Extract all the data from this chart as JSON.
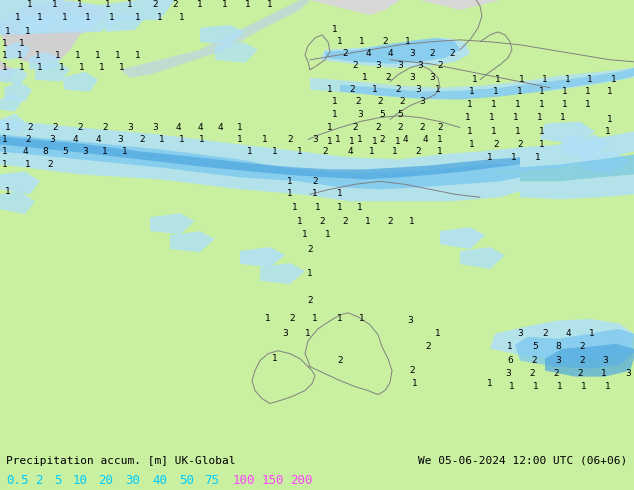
{
  "title_left": "Precipitation accum. [m] UK-Global",
  "title_right": "We 05-06-2024 12:00 UTC (06+06)",
  "bg_color": "#c8f0a0",
  "land_color": "#c8f0a0",
  "sea_color": "#d4ecd4",
  "uk_color": "#d8d8d8",
  "fig_width": 6.34,
  "fig_height": 4.9,
  "dpi": 100,
  "legend_items": [
    {
      "val": "0.5",
      "color": "#00ccff"
    },
    {
      "val": "2",
      "color": "#00ccff"
    },
    {
      "val": "5",
      "color": "#00ccff"
    },
    {
      "val": "10",
      "color": "#00ccff"
    },
    {
      "val": "20",
      "color": "#00ccff"
    },
    {
      "val": "30",
      "color": "#00ccff"
    },
    {
      "val": "40",
      "color": "#00ccff"
    },
    {
      "val": "50",
      "color": "#00ccff"
    },
    {
      "val": "75",
      "color": "#00ccff"
    },
    {
      "val": "100",
      "color": "#ff44ff"
    },
    {
      "val": "150",
      "color": "#ff44ff"
    },
    {
      "val": "200",
      "color": "#ff44ff"
    }
  ],
  "precip_light": "#b0e0f8",
  "precip_mid": "#7cc8f0",
  "precip_dark": "#50a8e0",
  "border_color": "#808080",
  "border_lw": 0.7
}
